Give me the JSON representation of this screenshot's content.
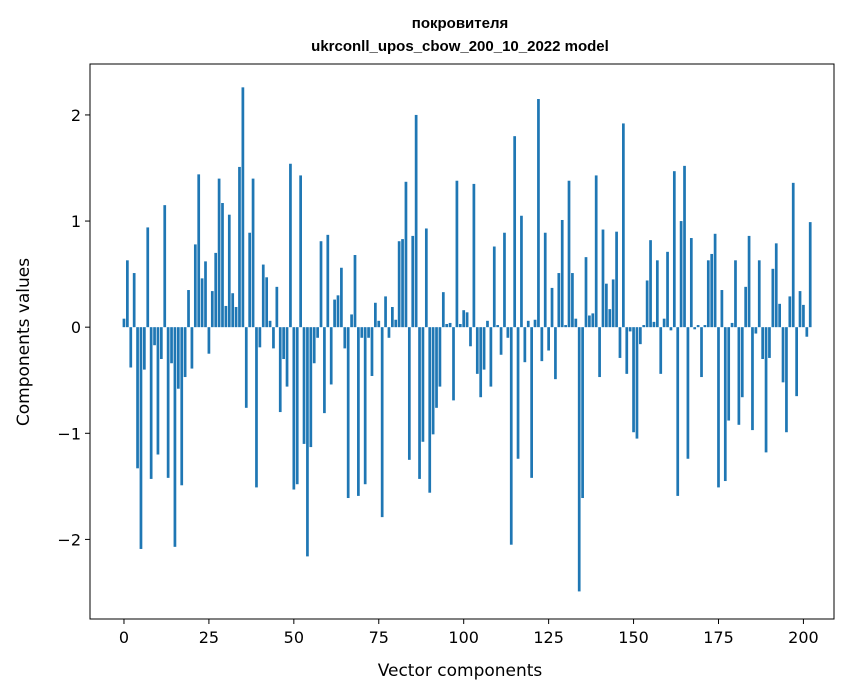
{
  "chart_data": {
    "type": "bar",
    "title_line1": "покровителя",
    "title_line2": "ukrconll_upos_cbow_200_10_2022 model",
    "xlabel": "Vector components",
    "ylabel": "Components values",
    "xlim": [
      -10,
      209
    ],
    "ylim": [
      -2.75,
      2.48
    ],
    "xticks": [
      0,
      25,
      50,
      75,
      100,
      125,
      150,
      175,
      200
    ],
    "yticks": [
      -2,
      -1,
      0,
      1,
      2
    ],
    "ytick_labels": [
      "−2",
      "−1",
      "0",
      "1",
      "2"
    ],
    "bar_color": "#1f77b4",
    "grid": false,
    "values": [
      0.08,
      0.63,
      -0.38,
      0.51,
      -1.33,
      -2.09,
      -0.4,
      0.94,
      -1.43,
      -0.17,
      -1.2,
      -0.3,
      1.15,
      -1.42,
      -0.34,
      -2.07,
      -0.58,
      -1.49,
      -0.47,
      0.35,
      -0.39,
      0.78,
      1.44,
      0.46,
      0.62,
      -0.25,
      0.34,
      0.7,
      1.4,
      1.17,
      0.2,
      1.06,
      0.32,
      0.19,
      1.51,
      2.26,
      -0.76,
      0.89,
      1.4,
      -1.51,
      -0.19,
      0.59,
      0.47,
      0.06,
      -0.2,
      0.38,
      -0.8,
      -0.3,
      -0.56,
      1.54,
      -1.53,
      -1.48,
      1.43,
      -1.1,
      -2.16,
      -1.13,
      -0.34,
      -0.1,
      0.81,
      -0.81,
      0.87,
      -0.54,
      0.26,
      0.3,
      0.56,
      -0.2,
      -1.61,
      0.12,
      0.68,
      -1.59,
      -0.1,
      -1.48,
      -0.1,
      -0.46,
      0.23,
      0.06,
      -1.79,
      0.29,
      -0.1,
      0.19,
      0.07,
      0.81,
      0.83,
      1.37,
      -1.25,
      0.86,
      2.0,
      -1.43,
      -1.08,
      0.93,
      -1.56,
      -1.01,
      -0.76,
      -0.56,
      0.33,
      0.03,
      0.04,
      -0.69,
      1.38,
      0.03,
      0.16,
      0.14,
      -0.18,
      1.35,
      -0.44,
      -0.66,
      -0.4,
      0.06,
      -0.56,
      0.76,
      0.02,
      -0.26,
      0.89,
      -0.1,
      -2.05,
      1.8,
      -1.24,
      1.05,
      -0.33,
      0.06,
      -1.42,
      0.07,
      2.15,
      -0.32,
      0.89,
      -0.22,
      0.37,
      -0.49,
      0.51,
      1.01,
      0.02,
      1.38,
      0.51,
      0.08,
      -2.49,
      -1.61,
      0.66,
      0.11,
      0.13,
      1.43,
      -0.47,
      0.92,
      0.41,
      0.17,
      0.45,
      0.9,
      -0.29,
      1.92,
      -0.44,
      -0.04,
      -0.99,
      -1.05,
      -0.16,
      0.02,
      0.44,
      0.82,
      0.05,
      0.63,
      -0.44,
      0.08,
      0.71,
      -0.03,
      1.47,
      -1.59,
      1.0,
      1.52,
      -1.24,
      0.84,
      -0.02,
      0.02,
      -0.47,
      0.02,
      0.63,
      0.69,
      0.88,
      -1.51,
      0.35,
      -1.45,
      -0.88,
      0.04,
      0.63,
      -0.92,
      -0.66,
      0.38,
      0.86,
      -0.97,
      -0.06,
      0.63,
      -0.3,
      -1.18,
      -0.29,
      0.55,
      0.79,
      0.22,
      -0.52,
      -0.99,
      0.29,
      1.36,
      -0.65,
      0.34,
      0.21,
      -0.09,
      0.99
    ]
  }
}
